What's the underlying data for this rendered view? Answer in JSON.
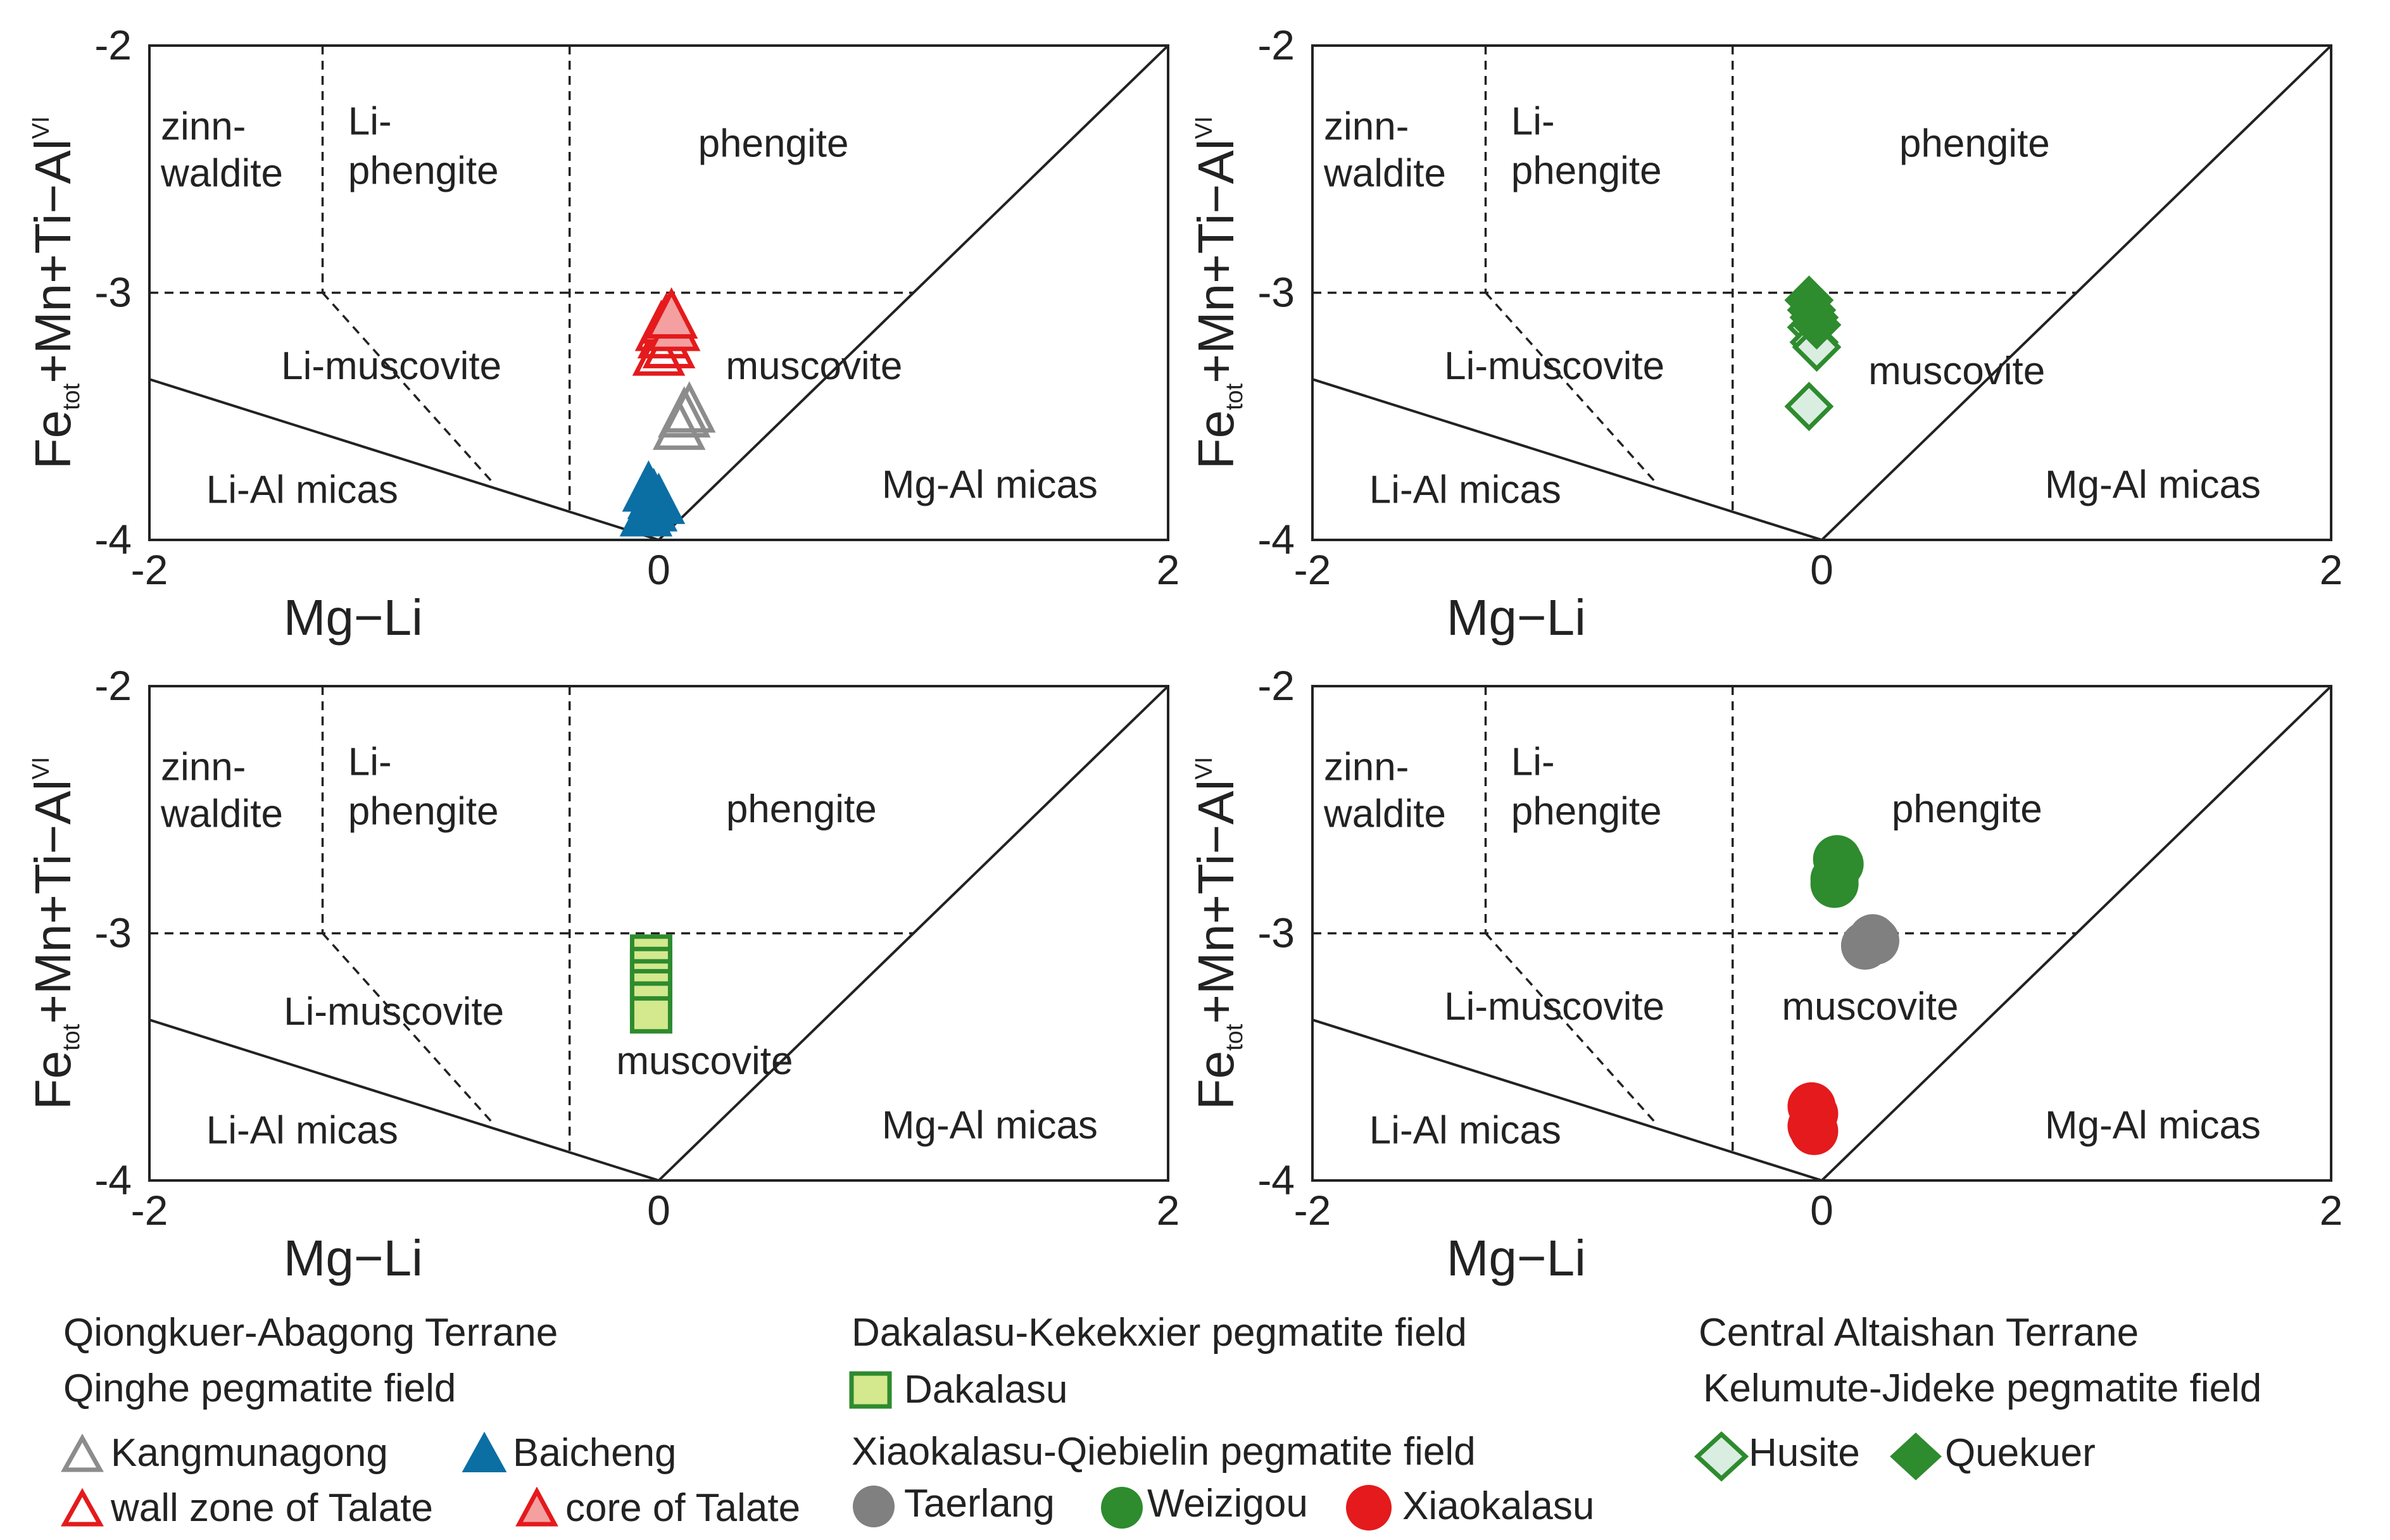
{
  "chart_data": [
    {
      "type": "scatter",
      "xlabel": "Mg−Li",
      "ylabel": {
        "main": "Fe",
        "sub1": "tot",
        "mid": "+Mn+Ti−Al",
        "sup": "VI"
      },
      "xlim": [
        -2,
        2
      ],
      "ylim": [
        -4,
        -2
      ],
      "xticks": [
        "-2",
        "0",
        "2"
      ],
      "yticks": [
        "-2",
        "-3",
        "-4"
      ],
      "regions": {
        "zinnwaldite": [
          "zinn-",
          "waldite"
        ],
        "li_phengite": [
          "Li-",
          "phengite"
        ],
        "phengite": "phengite",
        "li_muscovite": "Li-muscovite",
        "muscovite": "muscovite",
        "li_al_micas": "Li-Al micas",
        "mg_al_micas": "Mg-Al micas"
      },
      "series": [
        {
          "name": "Kangmunagong",
          "marker": "triangle-open",
          "color": "#8c8c8c",
          "points": [
            [
              0.08,
              -3.55
            ],
            [
              0.1,
              -3.5
            ],
            [
              0.12,
              -3.48
            ]
          ]
        },
        {
          "name": "Baicheng",
          "marker": "triangle-filled",
          "color": "#0b6fa4",
          "points": [
            [
              -0.04,
              -3.8
            ],
            [
              -0.02,
              -3.83
            ],
            [
              -0.03,
              -3.88
            ],
            [
              0.0,
              -3.85
            ],
            [
              -0.05,
              -3.9
            ]
          ]
        },
        {
          "name": "wall zone of Talate",
          "marker": "triangle-open",
          "color": "#e41a1c",
          "points": [
            [
              0.0,
              -3.25
            ],
            [
              0.02,
              -3.18
            ],
            [
              0.04,
              -3.22
            ],
            [
              0.01,
              -3.15
            ]
          ]
        },
        {
          "name": "core of Talate",
          "marker": "triangle-filled-light",
          "color": "#e41a1c",
          "points": [
            [
              0.03,
              -3.12
            ],
            [
              0.06,
              -3.15
            ],
            [
              0.05,
              -3.1
            ]
          ]
        }
      ]
    },
    {
      "type": "scatter",
      "xlabel": "Mg−Li",
      "ylabel": {
        "main": "Fe",
        "sub1": "tot",
        "mid": "+Mn+Ti−Al",
        "sup": "VI"
      },
      "xlim": [
        -2,
        2
      ],
      "ylim": [
        -4,
        -2
      ],
      "xticks": [
        "-2",
        "0",
        "2"
      ],
      "yticks": [
        "-2",
        "-3",
        "-4"
      ],
      "regions": {
        "zinnwaldite": [
          "zinn-",
          "waldite"
        ],
        "li_phengite": [
          "Li-",
          "phengite"
        ],
        "phengite": "phengite",
        "li_muscovite": "Li-muscovite",
        "muscovite": "muscovite",
        "li_al_micas": "Li-Al micas",
        "mg_al_micas": "Mg-Al micas"
      },
      "series": [
        {
          "name": "Husite",
          "marker": "diamond-open",
          "color": "#2e8b2e",
          "points": [
            [
              -0.04,
              -3.14
            ],
            [
              -0.03,
              -3.2
            ],
            [
              -0.02,
              -3.22
            ],
            [
              -0.05,
              -3.46
            ]
          ]
        },
        {
          "name": "Quekuer",
          "marker": "diamond-filled",
          "color": "#2e8b2e",
          "points": [
            [
              -0.05,
              -3.03
            ],
            [
              -0.04,
              -3.07
            ],
            [
              -0.03,
              -3.1
            ],
            [
              -0.02,
              -3.13
            ]
          ]
        }
      ]
    },
    {
      "type": "scatter",
      "xlabel": "Mg−Li",
      "ylabel": {
        "main": "Fe",
        "sub1": "tot",
        "mid": "+Mn+Ti−Al",
        "sup": "VI"
      },
      "xlim": [
        -2,
        2
      ],
      "ylim": [
        -4,
        -2
      ],
      "xticks": [
        "-2",
        "0",
        "2"
      ],
      "yticks": [
        "-2",
        "-3",
        "-4"
      ],
      "regions": {
        "zinnwaldite": [
          "zinn-",
          "waldite"
        ],
        "li_phengite": [
          "Li-",
          "phengite"
        ],
        "phengite": "phengite",
        "li_muscovite": "Li-muscovite",
        "muscovite": "muscovite",
        "li_al_micas": "Li-Al micas",
        "mg_al_micas": "Mg-Al micas"
      },
      "series": [
        {
          "name": "Dakalasu",
          "marker": "square",
          "color": "#2e8b2e",
          "fill": "#d4e88e",
          "points": [
            [
              -0.03,
              -3.08
            ],
            [
              -0.03,
              -3.13
            ],
            [
              -0.03,
              -3.18
            ],
            [
              -0.03,
              -3.22
            ],
            [
              -0.03,
              -3.27
            ],
            [
              -0.03,
              -3.33
            ]
          ]
        }
      ]
    },
    {
      "type": "scatter",
      "xlabel": "Mg−Li",
      "ylabel": {
        "main": "Fe",
        "sub1": "tot",
        "mid": "+Mn+Ti−Al",
        "sup": "VI"
      },
      "xlim": [
        -2,
        2
      ],
      "ylim": [
        -4,
        -2
      ],
      "xticks": [
        "-2",
        "0",
        "2"
      ],
      "yticks": [
        "-2",
        "-3",
        "-4"
      ],
      "regions": {
        "zinnwaldite": [
          "zinn-",
          "waldite"
        ],
        "li_phengite": [
          "Li-",
          "phengite"
        ],
        "phengite": "phengite",
        "li_muscovite": "Li-muscovite",
        "muscovite": "muscovite",
        "li_al_micas": "Li-Al micas",
        "mg_al_micas": "Mg-Al micas"
      },
      "series": [
        {
          "name": "Taerlang",
          "marker": "circle",
          "color": "#808080",
          "points": [
            [
              0.17,
              -3.05
            ],
            [
              0.2,
              -3.02
            ],
            [
              0.21,
              -3.03
            ]
          ]
        },
        {
          "name": "Weizigou",
          "marker": "circle",
          "color": "#2e8b2e",
          "points": [
            [
              0.05,
              -2.78
            ],
            [
              0.07,
              -2.72
            ],
            [
              0.05,
              -2.8
            ],
            [
              0.06,
              -2.7
            ]
          ]
        },
        {
          "name": "Xiaokalasu",
          "marker": "circle",
          "color": "#e41a1c",
          "points": [
            [
              -0.04,
              -3.7
            ],
            [
              -0.03,
              -3.73
            ],
            [
              -0.04,
              -3.78
            ],
            [
              -0.03,
              -3.8
            ]
          ]
        }
      ]
    }
  ],
  "legend": {
    "group1": {
      "title1": "Qiongkuer-Abagong Terrane",
      "title2": "Qinghe pegmatite field",
      "items": [
        "Kangmunagong",
        "Baicheng",
        "wall zone of Talate",
        "core of Talate"
      ]
    },
    "group2": {
      "title1": "Dakalasu-Kekekxier pegmatite field",
      "item1": "Dakalasu",
      "title2": "Xiaokalasu-Qiebielin pegmatite field",
      "items": [
        "Taerlang",
        "Weizigou",
        "Xiaokalasu"
      ]
    },
    "group3": {
      "title1": "Central Altaishan Terrane",
      "title2": "Kelumute-Jideke pegmatite field",
      "items": [
        "Husite",
        "Quekuer"
      ]
    }
  }
}
